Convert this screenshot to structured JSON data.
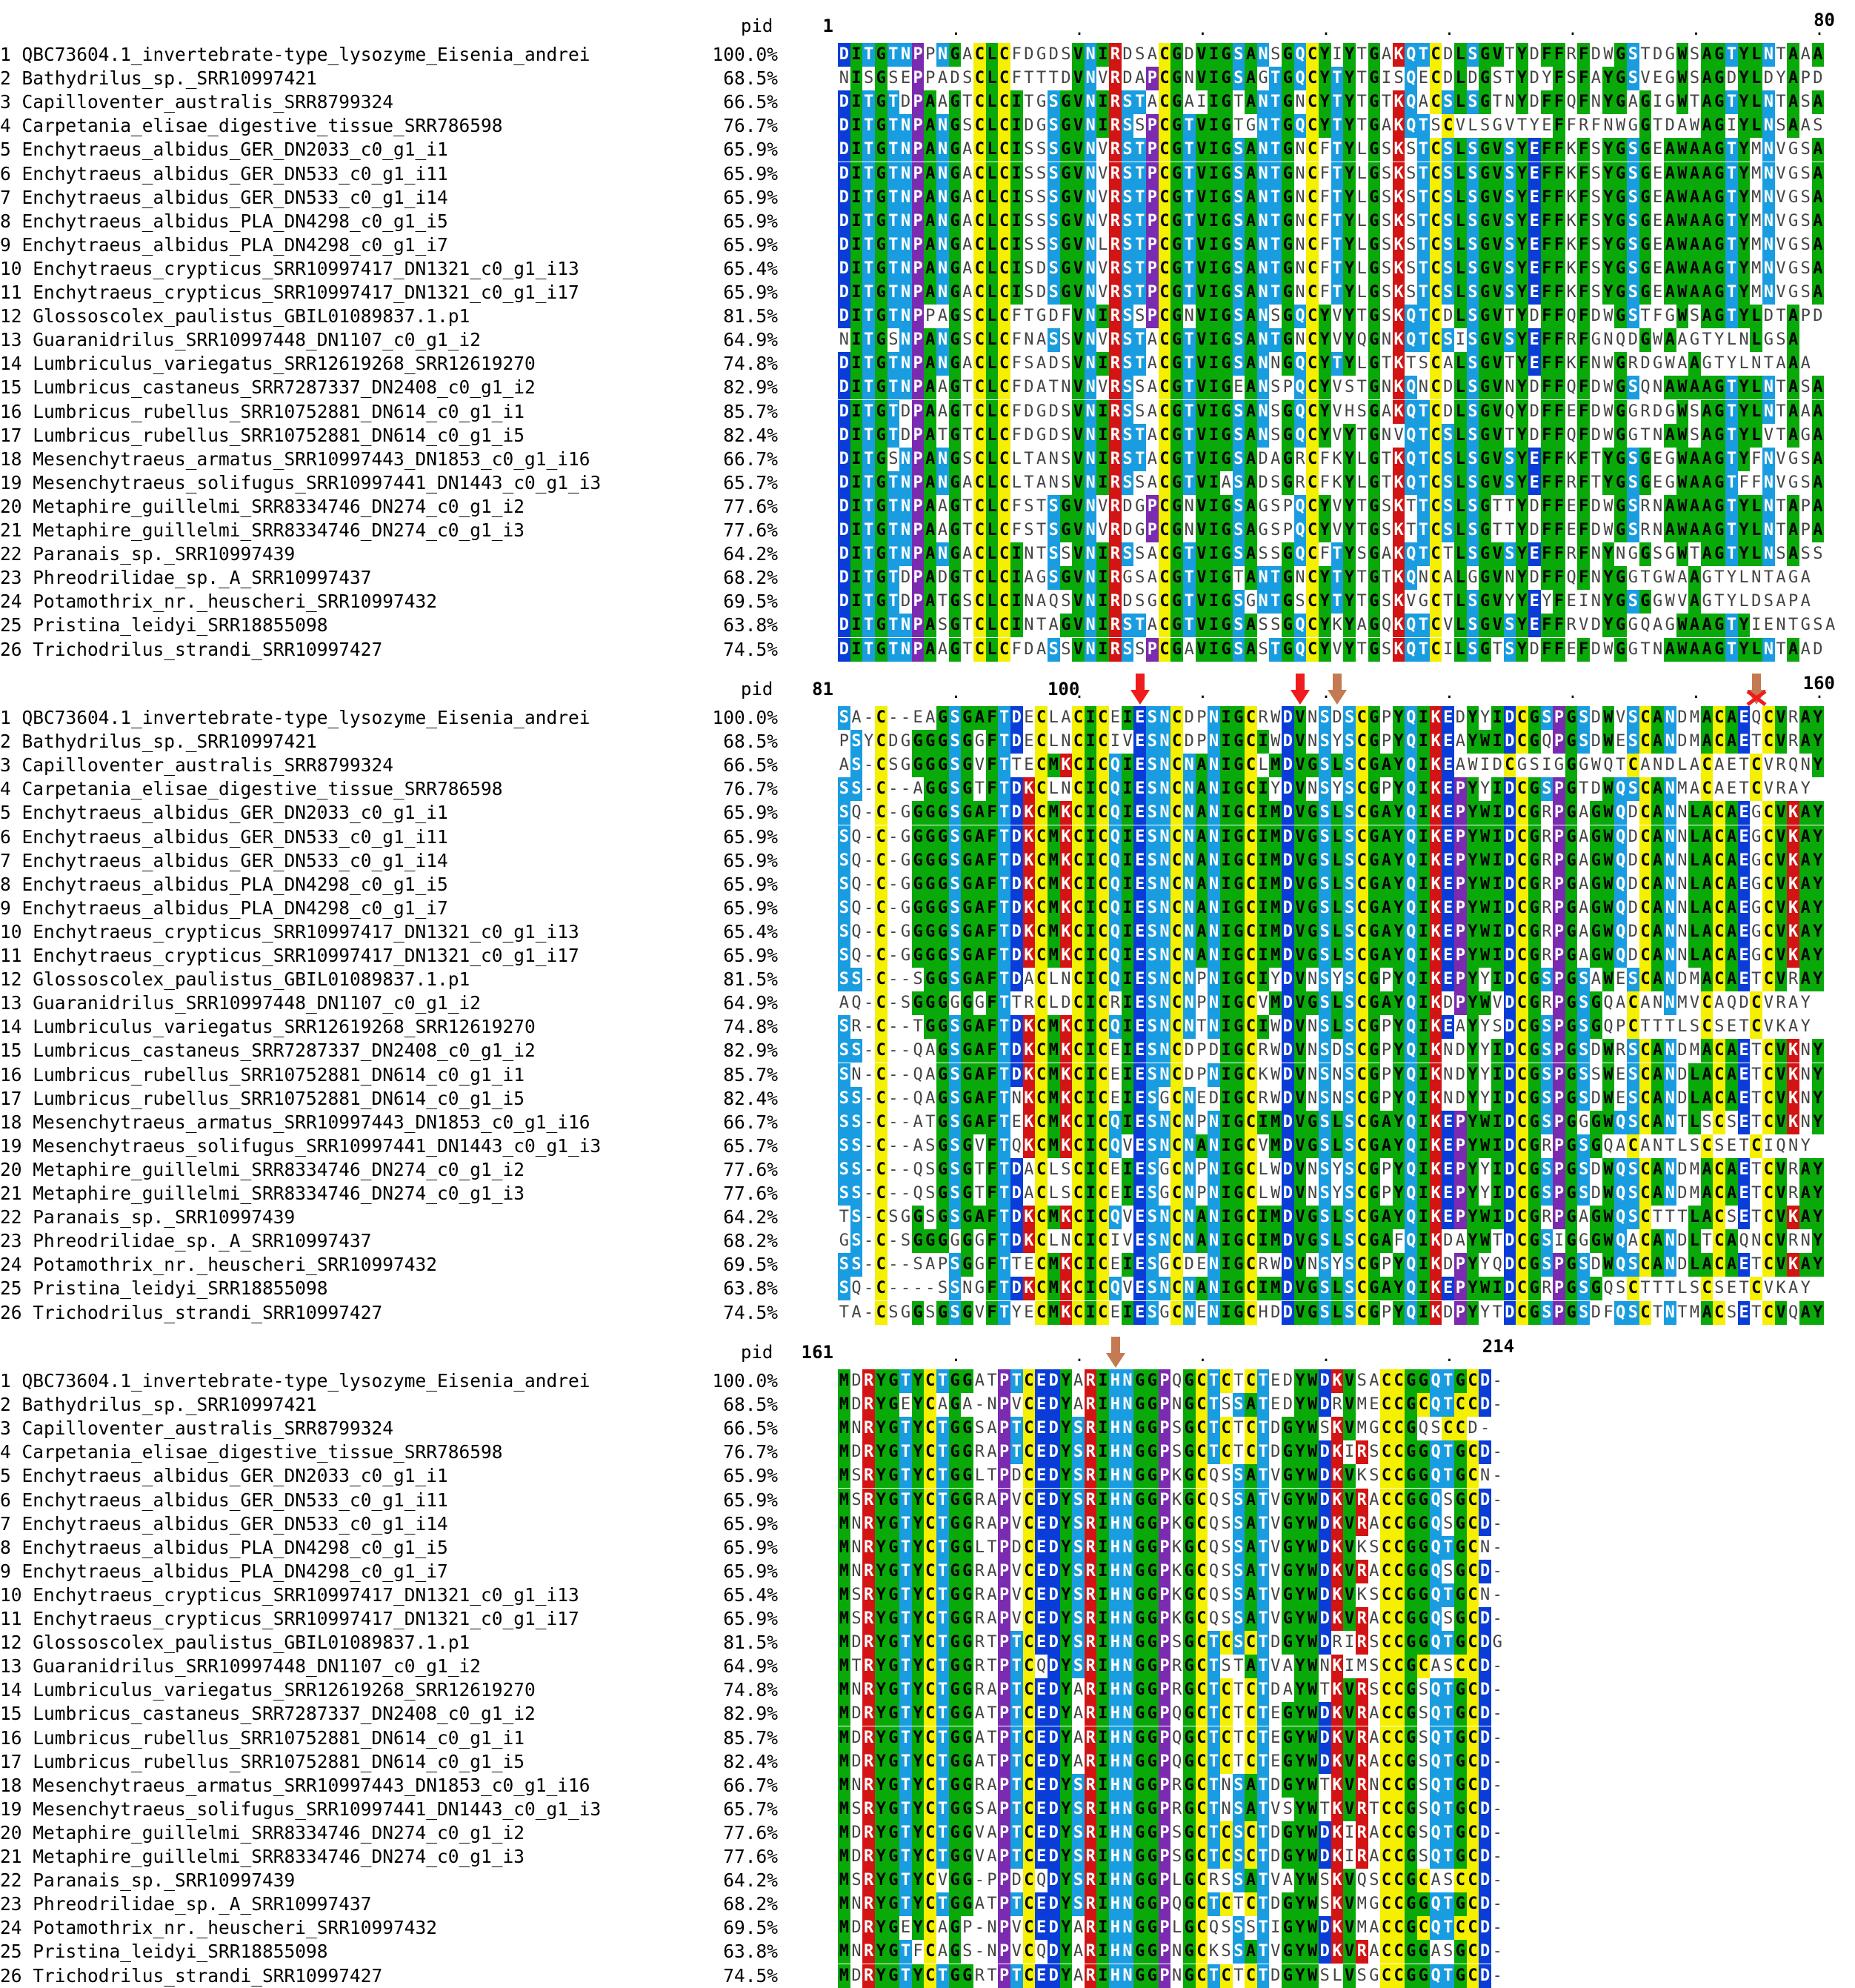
{
  "pid_header": "pid",
  "names": [
    "1 QBC73604.1_invertebrate-type_lysozyme_Eisenia_andrei",
    "2 Bathydrilus_sp._SRR10997421",
    "3 Capilloventer_australis_SRR8799324",
    "4 Carpetania_elisae_digestive_tissue_SRR786598",
    "5 Enchytraeus_albidus_GER_DN2033_c0_g1_i1",
    "6 Enchytraeus_albidus_GER_DN533_c0_g1_i11",
    "7 Enchytraeus_albidus_GER_DN533_c0_g1_i14",
    "8 Enchytraeus_albidus_PLA_DN4298_c0_g1_i5",
    "9 Enchytraeus_albidus_PLA_DN4298_c0_g1_i7",
    "10 Enchytraeus_crypticus_SRR10997417_DN1321_c0_g1_i13",
    "11 Enchytraeus_crypticus_SRR10997417_DN1321_c0_g1_i17",
    "12 Glossoscolex_paulistus_GBIL01089837.1.p1",
    "13 Guaranidrilus_SRR10997448_DN1107_c0_g1_i2",
    "14 Lumbriculus_variegatus_SRR12619268_SRR12619270",
    "15 Lumbricus_castaneus_SRR7287337_DN2408_c0_g1_i2",
    "16 Lumbricus_rubellus_SRR10752881_DN614_c0_g1_i1",
    "17 Lumbricus_rubellus_SRR10752881_DN614_c0_g1_i5",
    "18 Mesenchytraeus_armatus_SRR10997443_DN1853_c0_g1_i16",
    "19 Mesenchytraeus_solifugus_SRR10997441_DN1443_c0_g1_i3",
    "20 Metaphire_guillelmi_SRR8334746_DN274_c0_g1_i2",
    "21 Metaphire_guillelmi_SRR8334746_DN274_c0_g1_i3",
    "22 Paranais_sp._SRR10997439",
    "23 Phreodrilidae_sp._A_SRR10997437",
    "24 Potamothrix_nr._heuscheri_SRR10997432",
    "25 Pristina_leidyi_SRR18855098",
    "26 Trichodrilus_strandi_SRR10997427"
  ],
  "pids": [
    "100.0%",
    "68.5%",
    "66.5%",
    "76.7%",
    "65.9%",
    "65.9%",
    "65.9%",
    "65.9%",
    "65.9%",
    "65.4%",
    "65.9%",
    "81.5%",
    "64.9%",
    "74.8%",
    "82.9%",
    "85.7%",
    "82.4%",
    "66.7%",
    "65.7%",
    "77.6%",
    "77.6%",
    "64.2%",
    "68.2%",
    "69.5%",
    "63.8%",
    "74.5%"
  ],
  "blocks": [
    {
      "start_label": "1",
      "mid_label": "",
      "end_label": "80",
      "seqs": [
        "DITGTNPPNGACLCFDGDSVNIRDSACGDVIGSANSGQCYIYTGAKQTCDLSGVTYDFFRFDWGSTDGWSAGTYLNTAAA",
        "NISGSEPPADSCLCFTTTDVNVRDAPCGNVIGSAGTGQCYTYTGISQECDLDGSTYDYFSFAYGSVEGWSAGDYLDYAPD",
        "DITGTDPAAGTCLCITGSGVNIRSTACGAIIGTANTGNCYTYTGTKQACSLSGTNYDFFQFNYGAGIGWTAGTYLNTASA",
        "DITGTNPANGSCLCIDGSGVNIRSSPCGTVIGTGNTGQCYTYTGAKQTSCVLSGVTYEFFRFNWGGTDAWAGIYLNSAAS",
        "DITGTNPANGACLCISSSGVNVRSTPCGTVIGSANTGNCFTYLGSKSTCSLSGVSYEFFKFSYGSGEAWAAGTYMNVGSA",
        "DITGTNPANGACLCISSSGVNVRSTPCGTVIGSANTGNCFTYLGSKSTCSLSGVSYEFFKFSYGSGEAWAAGTYMNVGSA",
        "DITGTNPANGACLCISSSGVNVRSTPCGTVIGSANTGNCFTYLGSKSTCSLSGVSYEFFKFSYGSGEAWAAGTYMNVGSA",
        "DITGTNPANGACLCISSSGVNVRSTPCGTVIGSANTGNCFTYLGSKSTCSLSGVSYEFFKFSYGSGEAWAAGTYMNVGSA",
        "DITGTNPANGACLCISSSGVNLRSTPCGTVIGSANTGNCFTYLGSKSTCSLSGVSYEFFKFSYGSGEAWAAGTYMNVGSA",
        "DITGTNPANGACLCISDSGVNVRSTPCGTVIGSANTGNCFTYLGSKSTCSLSGVSYEFFKFSYGSGEAWAAGTYMNVGSA",
        "DITGTNPANGACLCISDSGVNVRSTPCGTVIGSANTGNCFTYLGSKSTCSLSGVSYEFFKFSYGSGEAWAAGTYMNVGSA",
        "DITGTNPPAGSCLCFTGDFVNIRSSPCGNVIGSANSGQCYVYTGSKQTCDLSGVTYDFFQFDWGSTFGWSAGTYLDTAPD",
        "NITGSNPANGSCLCFNASSVNVRSTACGTVIGSANTGNCYVYQGNKQTCSISGVSYEFFRFGNQDGWAAGTYLNLGSA",
        "DITGTNPANGACLCFSADSVNIRSTACGTVIGSANNGQCYTYLGTKTSCALSGVTYEFFKFNWGRDGWAAGTYLNTAAA",
        "DITGTNPAAGTCLCFDATNVNVRSSACGTVIGEANSPQCYVSTGNKQNCDLSGVNYDFFQFDWGSQNAWAAGTYLNTASA",
        "DITGTDPAAGTCLCFDGDSVNIRSSACGTVIGSANSGQCYVHSGAKQTCDLSGVQYDFFEFDWGGRDGWSAGTYLNTAAA",
        "DITGTDPATGTCLCFDGDSVNIRSTACGTVIGSANSGQCYVYTGNVQTCSLSGVTYDFFQFDWGGTNAWSAGTYLVTAGA",
        "DITGSNPANGSCLCLTANSVNIRSTACGTVIGSADAGRCFKYLGTKQTCSLSGVSYEFFKFTYGSGEGWAAGTYFNVGSA",
        "DITGTNPANGACLCLTANSVNIRSSACGTVIASADSGRCFKYLGTKQTCSLSGVSYEFFRFTYGSGEGWAAGTFFNVGSA",
        "DITGTNPAAGTCLCFSTSGVNVRDGPCGNVIGSAGSPQCYVYTGSKTTCSLSGTTYDFFEFDWGSRNAWAAGTYLNTAPA",
        "DITGTNPAAGTCLCFSTSGVNVRDGPCGNVIGSAGSPQCYVYTGSKTTCSLSGTTYDFFEFDWGSRNAWAAGTYLNTAPA",
        "DITGTNPANGACLCINTSSVNIRSSACGTVIGSASSGQCFTYSGAKQTCTLSGVSYEFFRFNYNGGSGWTAGTYLNSASS",
        "DITGTDPADGTCLCIAGSGVNIRGSACGTVIGTANTGNCYTYTGTKQNCALGGVNYDFFQFNYGGTGWAAGTYLNTAGA",
        "DITGTDPATGSCLCINAQSVNIRDSGCGTVIGSGNTGSCYTYTGSKVGCTLSGVYYEYFEINYGSGGWVAGTYLDSAPA",
        "DITGTNPASGTCLCINTAGVNIRSTACGTVIGSASSGQCYKYAGQKQTCVLSGVSYEFFRVDYGGQAGWAAGTYIENTGSA",
        "DITGTNPAAGTCLCFDASSVNIRSSPCGAVIGSASTGQCYVYTGSKQTCILSGTSYDFFEFDWGGTNAWAAGTYLNTAAD"
      ]
    },
    {
      "start_label": "81",
      "mid_label": "100",
      "end_label": "160",
      "seqs": [
        "SA-C--EAGSGAFTDECLACICEIESNCDPNIGCRWDVNSDSCGPYQIKEDYYIDCGSPGSDWVSCANDMACAEQCVRAY",
        "PSYCDGGGGSGGFTDECLNCICIVESNCDPNIGCIWDVNSYSCGPYQIKEAYWIDCGQPGSDWESCANDMACAETCVRAY",
        "AS-CSGGGGSGVFTTECMKCICQIESNCNANIGCLMDVGSLSCGAYQIKEAWIDCGSIGGGWQTCANDLACAETCVRQNY",
        "SS-C--AGGSGTFTDKCLNCICQIESNCNANIGCIYDVNSYSCGPYQIKEPYYIDCGSPGTDWQSCANMACAETCVRAY",
        "SQ-C-GGGGSGAFTDKCMKCICQIESNCNANIGCIMDVGSLSCGAYQIKEPYWIDCGRPGAGWQDCANNLACAEGCVKAY",
        "SQ-C-GGGGSGAFTDKCMKCICQIESNCNANIGCIMDVGSLSCGAYQIKEPYWIDCGRPGAGWQDCANNLACAEGCVKAY",
        "SQ-C-GGGGSGAFTDKCMKCICQIESNCNANIGCIMDVGSLSCGAYQIKEPYWIDCGRPGAGWQDCANNLACAEGCVKAY",
        "SQ-C-GGGGSGAFTDKCMKCICQIESNCNANIGCIMDVGSLSCGAYQIKEPYWIDCGRPGAGWQDCANNLACAEGCVKAY",
        "SQ-C-GGGGSGAFTDKCMKCICQIESNCNANIGCIMDVGSLSCGAYQIKEPYWIDCGRPGAGWQDCANNLACAEGCVKAY",
        "SQ-C-GGGGSGAFTDKCMKCICQIESNCNANIGCIMDVGSLSCGAYQIKEPYWIDCGRPGAGWQDCANNLACAEGCVKAY",
        "SQ-C-GGGGSGAFTDKCMKCICQIESNCNANIGCIMDVGSLSCGAYQIKEPYWIDCGRPGAGWQDCANNLACAEGCVKAY",
        "SS-C--SGGSGAFTDACLNCICQIESNCNPNIGCIYDVNSYSCGPYQIKEPYYIDCGSPGSAWESCANDMACAETCVRAY",
        "AQ-C-SGGGGGGFTTRCLDCICRIESNCNPNIGCVMDVGSLSCGAYQIKDPYWVDCGRPGSGQACANNMVCAQDCVRAY",
        "SR-C--TGGSGAFTDKCMKCICQIESNCNTNIGCIWDVNSLSCGPYQIKEAYYSDCGSPGSGQPCTTTLSCSETCVKAY",
        "SS-C--QAGSGAFTDKCMKCICEIESNCDPDIGCRWDVNSDSCGPYQIKNDYYIDCGSPGSDWRSCANDMACAETCVKNY",
        "SN-C--QAGSGAFTDKCMKCICEIESNCDPNIGCKWDVNSNSCGPYQIKNDYYIDCGSPGSSWESCANDLACAETCVKNY",
        "SS-C--QAGSGAFTNKCMKCICEIESGCNEDIGCRWDVNSNSCGPYQIKNDYYIDCGSPGSDWESCANDLACAETCVKNY",
        "SS-C--ATGSGAFTEKCMKCICQIESNCNPNIGCIMDVGSLSCGAYQIKEPYWIDCGSPGGGWQSCANTLSCSETCVKNY",
        "SS-C--ASGSGVFTQKCMKCICQVESNCNANIGCVMDVGSLSCGAYQIKEPYWIDCGRPGSGQACANTLSCSETCIQNY",
        "SS-C--QSGSGTFTDACLSCICEIESGCNPNIGCLWDVNSYSCGPYQIKEPYYIDCGSPGSDWQSCANDMACAETCVRAY",
        "SS-C--QSGSGTFTDACLSCICEIESGCNPNIGCLWDVNSYSCGPYQIKEPYYIDCGSPGSDWQSCANDMACAETCVRAY",
        "TS-CSGGSGSGAFTDKCMKCICQVESNCNANIGCIMDVGSLSCGAYQIKEPYWIDCGRPGAGWQSCTTTLACSETCVKAY",
        "GS-C-SGGGGGGFTDKCLNCICIVESNCNANIGCIMDVGSLSCGAFQIKDAYWTDCGSIGGGWQACANDLTCAQNCVRNY",
        "SS-C--SAPSGGFTTECMKCICEIESGCDENIGCRWDVNSYSCGPYQIKDPYYQDCGSPGSDWQSCANDLACAETCVKAY",
        "SQ-C----SSNGFTDKCMKCICQVESNCNANIGCIMDVGSLSCGAYQIKEPYWIDCGRPGSGQSCTTTLSCSETCVKAY",
        "TA-CSGGSGSGVFTYECMKCICEIESGCNENIGCHDDVGSLSCGPYQIKDPYYTDCGSPGSDFQSCTNTMACSETCVQAY"
      ]
    },
    {
      "start_label": "161",
      "mid_label": "",
      "end_label": "214",
      "seqs": [
        "MDRYGTYCTGGATPTCEDYARIHNGGPQGCTCTCTEDYWDKVSACCGGQTGCD-",
        "MDRYGEYCAGA-NPVCEDYARIHNGGPNGCTSSATEDYWDRVMECCGCQTCCD-",
        "MNRYGTYCTGGSAPTCEDYSRIHNGGPSGCTCTCTDGYWSKVMGCCGQSCCD-",
        "MDRYGTYCTGGRAPTCEDYSRIHNGGPSGCTCTCTDGYWDKIRSCCGGQTGCD-",
        "MSRYGTYCTGGLTPDCEDYSRIHNGGPKGCQSSATVGYWDKVKSCCGGQTGCN-",
        "MSRYGTYCTGGRAPVCEDYSRIHNGGPKGCQSSATVGYWDKVRACCGGQSGCD-",
        "MNRYGTYCTGGRAPVCEDYSRIHNGGPKGCQSSATVGYWDKVRACCGGQSGCD-",
        "MNRYGTYCTGGLTPDCEDYSRIHNGGPKGCQSSATVGYWDKVKSCCGGQTGCN-",
        "MNRYGTYCTGGRAPVCEDYSRIHNGGPKGCQSSATVGYWDKVRACCGGQSGCD-",
        "MSRYGTYCTGGRAPVCEDYSRIHNGGPKGCQSSATVGYWDKVKSCCGGQTGCN-",
        "MSRYGTYCTGGRAPVCEDYSRIHNGGPKGCQSSATVGYWDKVRACCGGQSGCD-",
        "MDRYGTYCTGGRTPTCEDYSRIHNGGPSGCTCSCTDGYWDRIRSCCGGQTGCDG",
        "MTRYGTYCTGGRTPTCQDYSRIHNGGPRGCTSTATVAYWNKIMSCCGCASCCD-",
        "MNRYGTYCTGGRAPTCEDYARIHNGGPRGCTCTCTDAYWTKVRSCCGSQTGCD-",
        "MDRYGTYCTGGATPTCEDYARIHNGGPQGCTCTCTEGYWDKVRACCGSQTGCD-",
        "MDRYGTYCTGGATPTCEDYARIHNGGPQGCTCTCTEGYWDKVRACCGSQTGCD-",
        "MDRYGTYCTGGATPTCEDYARIHNGGPQGCTCTCTEGYWDKVRACCGSQTGCD-",
        "MNRYGTYCTGGRAPTCEDYSRIHNGGPRGCTNSATDGYWTKVRNCCGSQTGCD-",
        "MSRYGTYCTGGSAPTCEDYSRIHNGGPRGCTNSATVSYWTKVRTCCGSQTGCD-",
        "MDRYGTYCTGGVAPTCEDYSRIHNGGPSGCTCSCTDGYWDKIRACCGSQTGCD-",
        "MDRYGTYCTGGVAPTCEDYSRIHNGGPSGCTCSCTDGYWDKIRACCGSQTGCD-",
        "MSRYGTYCVGG-PPDCQDYSRIHNGGPLGCRSSATVAYWSKVQSCCGCASCCD-",
        "MNRYGTYCTGGATPTCEDYSRIHNGGPQGCTCTCTDGYWSKVMGCCGGQTGCD-",
        "MDRYGEYCAGP-NPVCEDYARIHNGGPLGCQSSSTIGYWDKVMACCGCQTCCD-",
        "MNRYGTFCAGS-NPVCQDYARIHNGGPNGCKSSATVGYWDKVRACCGGASGCD-",
        "MDRYGTYCTGGRTPTCEDYARIHNGGPNGCTCTCTDGYWSLVSGCCGGQTGCD-"
      ]
    }
  ],
  "marker_colors": {
    "red": "#ee1c1c",
    "brown": "#c47a52"
  },
  "residue_colors": {
    "green": "#0aa90a",
    "yellow": "#f4f000",
    "blue": "#0a3dd8",
    "light_blue": "#1a9de0",
    "purple": "#7a2bb0",
    "red": "#d21414",
    "grey": "#8a8a8a"
  }
}
